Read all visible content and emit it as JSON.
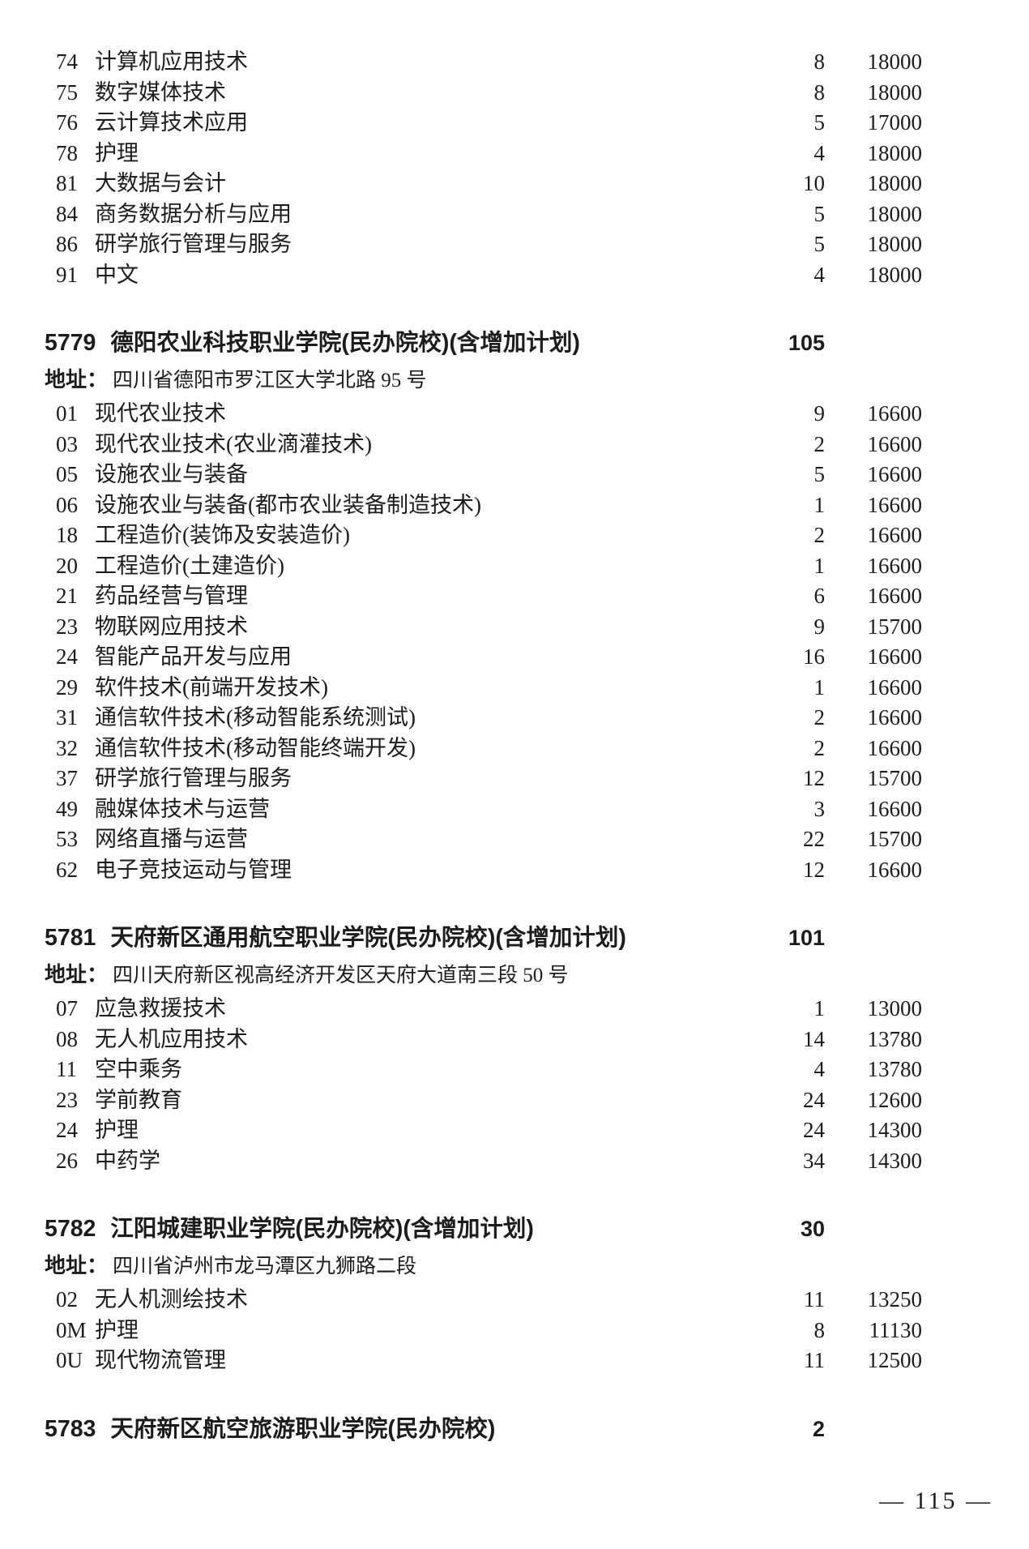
{
  "document": {
    "carryover_rows": [
      {
        "code": "74",
        "major": "计算机应用技术",
        "count": "8",
        "fee": "18000"
      },
      {
        "code": "75",
        "major": "数字媒体技术",
        "count": "8",
        "fee": "18000"
      },
      {
        "code": "76",
        "major": "云计算技术应用",
        "count": "5",
        "fee": "17000"
      },
      {
        "code": "78",
        "major": "护理",
        "count": "4",
        "fee": "18000"
      },
      {
        "code": "81",
        "major": "大数据与会计",
        "count": "10",
        "fee": "18000"
      },
      {
        "code": "84",
        "major": "商务数据分析与应用",
        "count": "5",
        "fee": "18000"
      },
      {
        "code": "86",
        "major": "研学旅行管理与服务",
        "count": "5",
        "fee": "18000"
      },
      {
        "code": "91",
        "major": "中文",
        "count": "4",
        "fee": "18000"
      }
    ],
    "schools": [
      {
        "code": "5779",
        "name": "德阳农业科技职业学院(民办院校)(含增加计划)",
        "total": "105",
        "address_label": "地址：",
        "address": "四川省德阳市罗江区大学北路 95 号",
        "rows": [
          {
            "code": "01",
            "major": "现代农业技术",
            "count": "9",
            "fee": "16600"
          },
          {
            "code": "03",
            "major": "现代农业技术(农业滴灌技术)",
            "count": "2",
            "fee": "16600"
          },
          {
            "code": "05",
            "major": "设施农业与装备",
            "count": "5",
            "fee": "16600"
          },
          {
            "code": "06",
            "major": "设施农业与装备(都市农业装备制造技术)",
            "count": "1",
            "fee": "16600"
          },
          {
            "code": "18",
            "major": "工程造价(装饰及安装造价)",
            "count": "2",
            "fee": "16600"
          },
          {
            "code": "20",
            "major": "工程造价(土建造价)",
            "count": "1",
            "fee": "16600"
          },
          {
            "code": "21",
            "major": "药品经营与管理",
            "count": "6",
            "fee": "16600"
          },
          {
            "code": "23",
            "major": "物联网应用技术",
            "count": "9",
            "fee": "15700"
          },
          {
            "code": "24",
            "major": "智能产品开发与应用",
            "count": "16",
            "fee": "16600"
          },
          {
            "code": "29",
            "major": "软件技术(前端开发技术)",
            "count": "1",
            "fee": "16600"
          },
          {
            "code": "31",
            "major": "通信软件技术(移动智能系统测试)",
            "count": "2",
            "fee": "16600"
          },
          {
            "code": "32",
            "major": "通信软件技术(移动智能终端开发)",
            "count": "2",
            "fee": "16600"
          },
          {
            "code": "37",
            "major": "研学旅行管理与服务",
            "count": "12",
            "fee": "15700"
          },
          {
            "code": "49",
            "major": "融媒体技术与运营",
            "count": "3",
            "fee": "16600"
          },
          {
            "code": "53",
            "major": "网络直播与运营",
            "count": "22",
            "fee": "15700"
          },
          {
            "code": "62",
            "major": "电子竞技运动与管理",
            "count": "12",
            "fee": "16600"
          }
        ]
      },
      {
        "code": "5781",
        "name": "天府新区通用航空职业学院(民办院校)(含增加计划)",
        "total": "101",
        "address_label": "地址：",
        "address": "四川天府新区视高经济开发区天府大道南三段 50 号",
        "rows": [
          {
            "code": "07",
            "major": "应急救援技术",
            "count": "1",
            "fee": "13000"
          },
          {
            "code": "08",
            "major": "无人机应用技术",
            "count": "14",
            "fee": "13780"
          },
          {
            "code": "11",
            "major": "空中乘务",
            "count": "4",
            "fee": "13780"
          },
          {
            "code": "23",
            "major": "学前教育",
            "count": "24",
            "fee": "12600"
          },
          {
            "code": "24",
            "major": "护理",
            "count": "24",
            "fee": "14300"
          },
          {
            "code": "26",
            "major": "中药学",
            "count": "34",
            "fee": "14300"
          }
        ]
      },
      {
        "code": "5782",
        "name": "江阳城建职业学院(民办院校)(含增加计划)",
        "total": "30",
        "address_label": "地址：",
        "address": "四川省泸州市龙马潭区九狮路二段",
        "rows": [
          {
            "code": "02",
            "major": "无人机测绘技术",
            "count": "11",
            "fee": "13250"
          },
          {
            "code": "0M",
            "major": "护理",
            "count": "8",
            "fee": "11130"
          },
          {
            "code": "0U",
            "major": "现代物流管理",
            "count": "11",
            "fee": "12500"
          }
        ]
      },
      {
        "code": "5783",
        "name": "天府新区航空旅游职业学院(民办院校)",
        "total": "2",
        "address_label": "",
        "address": "",
        "rows": []
      }
    ],
    "footer": {
      "page_number": "— 115 —"
    }
  }
}
